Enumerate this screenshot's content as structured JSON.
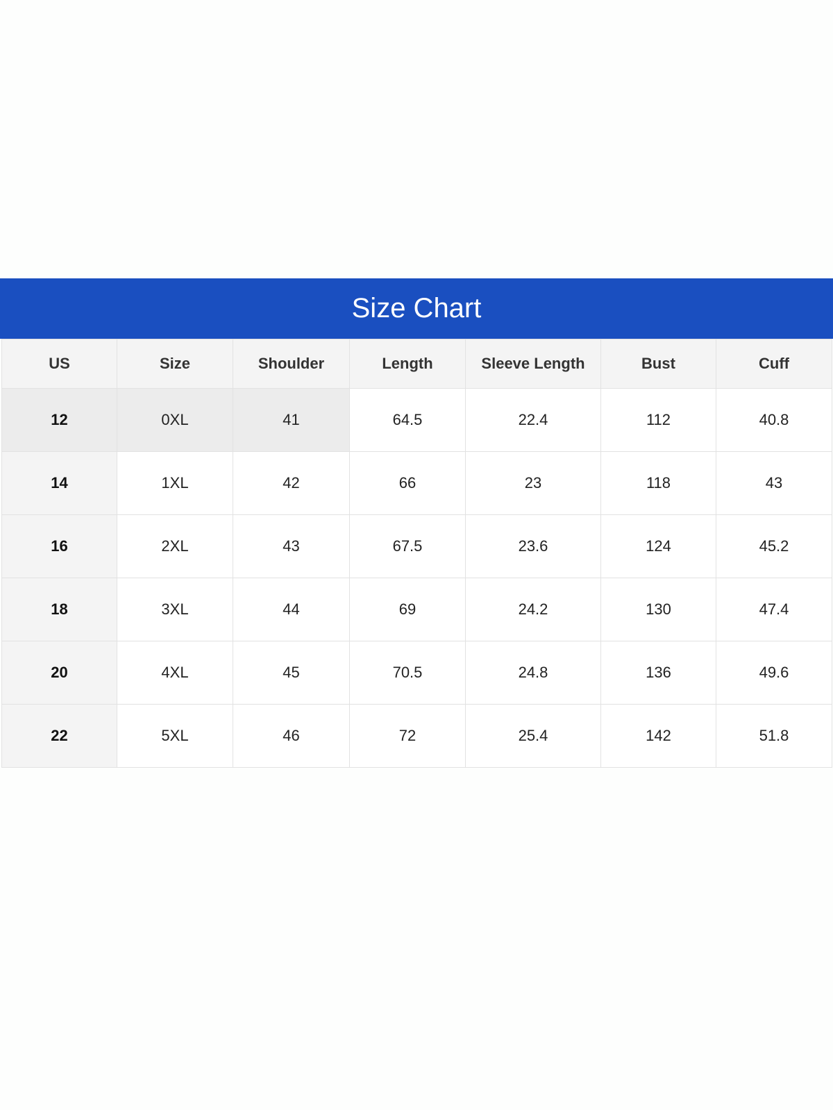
{
  "title": "Size Chart",
  "table": {
    "header": [
      "US",
      "Size",
      "Shoulder",
      "Length",
      "Sleeve Length",
      "Bust",
      "Cuff"
    ],
    "rows": [
      [
        12,
        "0XL",
        41,
        64.5,
        22.4,
        112,
        40.8
      ],
      [
        14,
        "1XL",
        42,
        66,
        23,
        118,
        43
      ],
      [
        16,
        "2XL",
        43,
        67.5,
        23.6,
        124,
        45.2
      ],
      [
        18,
        "3XL",
        44,
        69,
        24.2,
        130,
        47.4
      ],
      [
        20,
        "4XL",
        45,
        70.5,
        24.8,
        136,
        49.6
      ],
      [
        22,
        "5XL",
        46,
        72,
        25.4,
        142,
        51.8
      ]
    ]
  }
}
